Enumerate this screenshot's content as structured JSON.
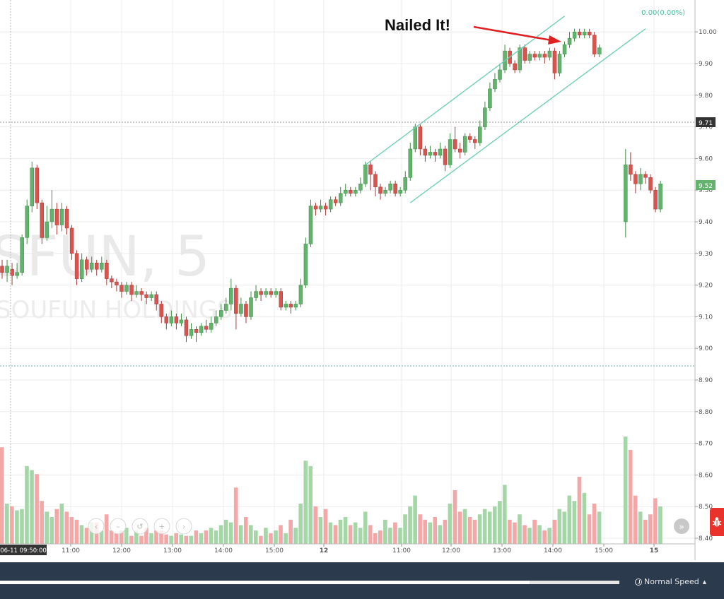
{
  "watermark": {
    "symbol": "SFUN, 5",
    "company": "SOUFUN HOLDINGS"
  },
  "annotation": {
    "text": "Nailed It!"
  },
  "change_label": "0.00(0.00%)",
  "price_tags": {
    "crosshair": "9.71",
    "last": "9.52"
  },
  "crosshair_time_label": "06-11 09:50:00",
  "nav_buttons": [
    "‹",
    "–",
    "↺",
    "+",
    "›"
  ],
  "scroll_right_label": "»",
  "bottom_bar": {
    "speed_label": "Normal Speed",
    "progress": 0.855
  },
  "colors": {
    "up": "#4caf50",
    "down": "#d9534f",
    "channel": "#6fd0b8",
    "vol_up": "#a5d6a7",
    "vol_down": "#f4a7a7",
    "up_fill": "#63b26d"
  },
  "chart_data": {
    "type": "candlestick",
    "ylim": [
      8.4,
      10.08
    ],
    "y_ticks": [
      "10.00",
      "9.90",
      "9.80",
      "9.70",
      "9.60",
      "9.50",
      "9.40",
      "9.30",
      "9.20",
      "9.10",
      "9.00",
      "8.90",
      "8.80",
      "8.70",
      "8.60",
      "8.50",
      "8.40"
    ],
    "x_ticks": [
      "11:00",
      "12:00",
      "13:00",
      "14:00",
      "15:00",
      "12",
      "11:00",
      "12:00",
      "13:00",
      "14:00",
      "15:00",
      "15"
    ],
    "sessions": [
      "06-11",
      "06-12",
      "06-15"
    ],
    "candles": [
      [
        9.26,
        9.24,
        9.28,
        9.22
      ],
      [
        9.24,
        9.26,
        9.28,
        9.21
      ],
      [
        9.25,
        9.23,
        9.27,
        9.2
      ],
      [
        9.23,
        9.24,
        9.27,
        9.22
      ],
      [
        9.24,
        9.35,
        9.36,
        9.23
      ],
      [
        9.35,
        9.45,
        9.47,
        9.33
      ],
      [
        9.45,
        9.57,
        9.59,
        9.43
      ],
      [
        9.57,
        9.46,
        9.58,
        9.44
      ],
      [
        9.46,
        9.35,
        9.47,
        9.33
      ],
      [
        9.35,
        9.4,
        9.45,
        9.34
      ],
      [
        9.4,
        9.44,
        9.5,
        9.38
      ],
      [
        9.44,
        9.39,
        9.46,
        9.36
      ],
      [
        9.39,
        9.44,
        9.46,
        9.37
      ],
      [
        9.44,
        9.38,
        9.45,
        9.36
      ],
      [
        9.38,
        9.3,
        9.39,
        9.28
      ],
      [
        9.3,
        9.22,
        9.31,
        9.2
      ],
      [
        9.22,
        9.28,
        9.3,
        9.21
      ],
      [
        9.28,
        9.25,
        9.29,
        9.23
      ],
      [
        9.25,
        9.27,
        9.29,
        9.24
      ],
      [
        9.27,
        9.25,
        9.28,
        9.23
      ],
      [
        9.25,
        9.27,
        9.29,
        9.24
      ],
      [
        9.27,
        9.22,
        9.28,
        9.2
      ],
      [
        9.22,
        9.21,
        9.23,
        9.19
      ],
      [
        9.21,
        9.2,
        9.22,
        9.18
      ],
      [
        9.2,
        9.18,
        9.21,
        9.16
      ],
      [
        9.18,
        9.2,
        9.21,
        9.17
      ],
      [
        9.2,
        9.17,
        9.21,
        9.15
      ],
      [
        9.17,
        9.18,
        9.2,
        9.16
      ],
      [
        9.18,
        9.17,
        9.19,
        9.15
      ],
      [
        9.17,
        9.16,
        9.18,
        9.14
      ],
      [
        9.16,
        9.17,
        9.18,
        9.15
      ],
      [
        9.17,
        9.14,
        9.18,
        9.12
      ],
      [
        9.14,
        9.1,
        9.15,
        9.08
      ],
      [
        9.1,
        9.08,
        9.11,
        9.06
      ],
      [
        9.08,
        9.1,
        9.12,
        9.07
      ],
      [
        9.1,
        9.08,
        9.11,
        9.06
      ],
      [
        9.08,
        9.09,
        9.11,
        9.07
      ],
      [
        9.09,
        9.04,
        9.1,
        9.02
      ],
      [
        9.04,
        9.06,
        9.08,
        9.03
      ],
      [
        9.06,
        9.05,
        9.07,
        9.02
      ],
      [
        9.05,
        9.07,
        9.08,
        9.04
      ],
      [
        9.07,
        9.06,
        9.09,
        9.05
      ],
      [
        9.06,
        9.08,
        9.1,
        9.05
      ],
      [
        9.08,
        9.1,
        9.12,
        9.07
      ],
      [
        9.1,
        9.12,
        9.14,
        9.09
      ],
      [
        9.12,
        9.14,
        9.16,
        9.11
      ],
      [
        9.14,
        9.19,
        9.22,
        9.12
      ],
      [
        9.19,
        9.11,
        9.2,
        9.06
      ],
      [
        9.11,
        9.14,
        9.16,
        9.1
      ],
      [
        9.14,
        9.1,
        9.15,
        9.08
      ],
      [
        9.1,
        9.16,
        9.18,
        9.09
      ],
      [
        9.16,
        9.18,
        9.2,
        9.15
      ],
      [
        9.18,
        9.17,
        9.19,
        9.15
      ],
      [
        9.17,
        9.18,
        9.19,
        9.16
      ],
      [
        9.18,
        9.17,
        9.19,
        9.16
      ],
      [
        9.17,
        9.18,
        9.19,
        9.16
      ],
      [
        9.18,
        9.13,
        9.19,
        9.12
      ],
      [
        9.13,
        9.14,
        9.15,
        9.12
      ],
      [
        9.14,
        9.13,
        9.15,
        9.11
      ],
      [
        9.13,
        9.14,
        9.15,
        9.12
      ],
      [
        9.14,
        9.2,
        9.22,
        9.13
      ],
      [
        9.2,
        9.33,
        9.35,
        9.19
      ],
      [
        9.33,
        9.45,
        9.47,
        9.32
      ],
      [
        9.45,
        9.44,
        9.46,
        9.42
      ],
      [
        9.44,
        9.45,
        9.47,
        9.43
      ],
      [
        9.45,
        9.44,
        9.46,
        9.42
      ],
      [
        9.44,
        9.47,
        9.48,
        9.43
      ],
      [
        9.47,
        9.46,
        9.48,
        9.45
      ],
      [
        9.46,
        9.49,
        9.51,
        9.45
      ],
      [
        9.49,
        9.5,
        9.52,
        9.48
      ],
      [
        9.5,
        9.49,
        9.51,
        9.48
      ],
      [
        9.49,
        9.5,
        9.51,
        9.48
      ],
      [
        9.5,
        9.52,
        9.54,
        9.49
      ],
      [
        9.52,
        9.58,
        9.59,
        9.51
      ],
      [
        9.58,
        9.55,
        9.59,
        9.5
      ],
      [
        9.55,
        9.51,
        9.56,
        9.48
      ],
      [
        9.51,
        9.49,
        9.52,
        9.47
      ],
      [
        9.49,
        9.5,
        9.51,
        9.48
      ],
      [
        9.5,
        9.52,
        9.53,
        9.49
      ],
      [
        9.52,
        9.49,
        9.53,
        9.48
      ],
      [
        9.49,
        9.5,
        9.51,
        9.48
      ],
      [
        9.5,
        9.54,
        9.56,
        9.49
      ],
      [
        9.54,
        9.63,
        9.65,
        9.53
      ],
      [
        9.63,
        9.7,
        9.71,
        9.62
      ],
      [
        9.7,
        9.63,
        9.71,
        9.61
      ],
      [
        9.63,
        9.61,
        9.64,
        9.59
      ],
      [
        9.61,
        9.62,
        9.64,
        9.6
      ],
      [
        9.62,
        9.61,
        9.63,
        9.59
      ],
      [
        9.61,
        9.63,
        9.65,
        9.6
      ],
      [
        9.63,
        9.58,
        9.64,
        9.56
      ],
      [
        9.58,
        9.66,
        9.68,
        9.57
      ],
      [
        9.66,
        9.63,
        9.7,
        9.62
      ],
      [
        9.63,
        9.62,
        9.65,
        9.6
      ],
      [
        9.62,
        9.67,
        9.68,
        9.61
      ],
      [
        9.67,
        9.66,
        9.68,
        9.65
      ],
      [
        9.66,
        9.65,
        9.67,
        9.63
      ],
      [
        9.65,
        9.7,
        9.72,
        9.64
      ],
      [
        9.7,
        9.76,
        9.78,
        9.69
      ],
      [
        9.76,
        9.82,
        9.84,
        9.75
      ],
      [
        9.82,
        9.85,
        9.87,
        9.81
      ],
      [
        9.85,
        9.88,
        9.9,
        9.84
      ],
      [
        9.88,
        9.94,
        9.96,
        9.87
      ],
      [
        9.94,
        9.9,
        9.95,
        9.89
      ],
      [
        9.9,
        9.88,
        9.91,
        9.87
      ],
      [
        9.88,
        9.95,
        9.96,
        9.87
      ],
      [
        9.95,
        9.91,
        9.96,
        9.9
      ],
      [
        9.91,
        9.93,
        9.94,
        9.9
      ],
      [
        9.93,
        9.92,
        9.94,
        9.91
      ],
      [
        9.92,
        9.93,
        9.94,
        9.91
      ],
      [
        9.93,
        9.92,
        9.94,
        9.9
      ],
      [
        9.92,
        9.94,
        9.95,
        9.91
      ],
      [
        9.94,
        9.87,
        9.95,
        9.85
      ],
      [
        9.87,
        9.93,
        9.94,
        9.86
      ],
      [
        9.93,
        9.96,
        9.97,
        9.92
      ],
      [
        9.96,
        9.98,
        10.0,
        9.95
      ],
      [
        9.98,
        10.0,
        10.01,
        9.97
      ],
      [
        10.0,
        9.99,
        10.01,
        9.98
      ],
      [
        9.99,
        10.0,
        10.01,
        9.98
      ],
      [
        10.0,
        9.99,
        10.01,
        9.98
      ],
      [
        9.99,
        9.93,
        10.0,
        9.92
      ],
      [
        9.93,
        9.95,
        9.96,
        9.92
      ],
      [
        9.4,
        9.58,
        9.63,
        9.35
      ],
      [
        9.58,
        9.55,
        9.62,
        9.53
      ],
      [
        9.55,
        9.52,
        9.56,
        9.49
      ],
      [
        9.52,
        9.55,
        9.57,
        9.5
      ],
      [
        9.55,
        9.54,
        9.56,
        9.52
      ],
      [
        9.54,
        9.5,
        9.55,
        9.49
      ],
      [
        9.5,
        9.44,
        9.51,
        9.43
      ],
      [
        9.44,
        9.52,
        9.53,
        9.43
      ]
    ],
    "volume": [
      72,
      30,
      28,
      25,
      26,
      58,
      55,
      52,
      32,
      24,
      20,
      26,
      30,
      24,
      20,
      18,
      14,
      12,
      16,
      16,
      10,
      22,
      10,
      8,
      10,
      12,
      6,
      10,
      6,
      12,
      8,
      10,
      10,
      7,
      6,
      8,
      7,
      6,
      6,
      10,
      8,
      10,
      12,
      10,
      14,
      18,
      16,
      42,
      14,
      20,
      14,
      10,
      6,
      12,
      8,
      10,
      14,
      8,
      18,
      12,
      30,
      62,
      58,
      28,
      20,
      26,
      16,
      14,
      18,
      20,
      14,
      16,
      12,
      24,
      14,
      8,
      10,
      18,
      12,
      16,
      12,
      22,
      28,
      36,
      22,
      18,
      16,
      20,
      14,
      18,
      30,
      40,
      24,
      26,
      20,
      18,
      22,
      26,
      24,
      28,
      32,
      44,
      18,
      16,
      22,
      14,
      12,
      18,
      14,
      10,
      12,
      18,
      26,
      24,
      36,
      32,
      50,
      38,
      22,
      30,
      24,
      80,
      70,
      36,
      24,
      18,
      22,
      34,
      28
    ],
    "channel": {
      "upper": [
        [
          73,
          9.58
        ],
        [
          113,
          10.05
        ]
      ],
      "lower": [
        [
          82,
          9.46
        ],
        [
          125,
          10.01
        ]
      ]
    }
  }
}
